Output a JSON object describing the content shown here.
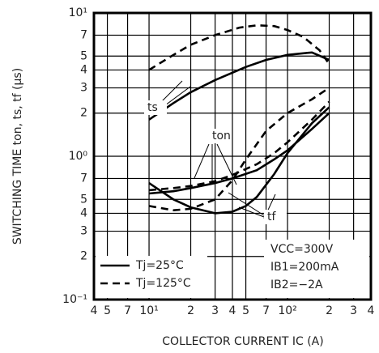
{
  "chart_data": {
    "type": "line",
    "x_label": "COLLECTOR CURRENT   IC (A)",
    "y_label": "SWITCHING TIME   ton, ts, tf (μs)",
    "xlog": true,
    "ylog": true,
    "grid": true,
    "xlim": [
      4,
      400
    ],
    "xticks": [
      4,
      5,
      7,
      {
        "value": 10,
        "label": "10¹"
      },
      {
        "value": 20,
        "label": "2"
      },
      {
        "value": 30,
        "label": "3"
      },
      {
        "value": 40,
        "label": "4"
      },
      {
        "value": 50,
        "label": "5"
      },
      {
        "value": 70,
        "label": "7"
      },
      {
        "value": 100,
        "label": "10²"
      },
      {
        "value": 200,
        "label": "2"
      },
      {
        "value": 300,
        "label": "3"
      },
      {
        "value": 400,
        "label": "4"
      }
    ],
    "ylim": [
      0.1,
      10
    ],
    "yticks": [
      {
        "value": 0.1,
        "label": "10⁻¹"
      },
      {
        "value": 0.2,
        "label": "2"
      },
      {
        "value": 0.3,
        "label": "3"
      },
      {
        "value": 0.4,
        "label": "4"
      },
      {
        "value": 0.5,
        "label": "5"
      },
      {
        "value": 0.7,
        "label": "7"
      },
      {
        "value": 1,
        "label": "10⁰"
      },
      2,
      3,
      4,
      5,
      7,
      {
        "value": 10,
        "label": "10¹"
      }
    ],
    "series": [
      {
        "name": "Tj=25°C",
        "dash": false,
        "color": "#000000",
        "curves": [
          {
            "x": [
              10,
              15,
              20,
              30,
              50,
              70,
              100,
              150,
              200
            ],
            "values": [
              1.8,
              2.35,
              2.8,
              3.4,
              4.2,
              4.7,
              5.1,
              5.3,
              4.7
            ]
          },
          {
            "x": [
              10,
              15,
              20,
              30,
              40,
              60,
              80,
              100,
              150,
              200
            ],
            "values": [
              0.55,
              0.57,
              0.6,
              0.65,
              0.7,
              0.8,
              0.95,
              1.1,
              1.55,
              2.0
            ]
          },
          {
            "x": [
              10,
              15,
              20,
              30,
              40,
              50,
              60,
              80,
              100,
              150,
              200
            ],
            "values": [
              0.65,
              0.5,
              0.44,
              0.4,
              0.41,
              0.45,
              0.52,
              0.75,
              1.05,
              1.7,
              2.2
            ]
          }
        ]
      },
      {
        "name": "Tj=125°C",
        "dash": true,
        "color": "#000000",
        "curves": [
          {
            "x": [
              10,
              15,
              20,
              30,
              45,
              60,
              80,
              100,
              130,
              170,
              200
            ],
            "values": [
              4.0,
              5.1,
              6.0,
              7.0,
              7.9,
              8.2,
              8.1,
              7.6,
              6.8,
              5.5,
              4.4
            ]
          },
          {
            "x": [
              10,
              15,
              20,
              30,
              40,
              60,
              80,
              100,
              150,
              200
            ],
            "values": [
              0.58,
              0.6,
              0.62,
              0.67,
              0.74,
              0.88,
              1.05,
              1.25,
              1.8,
              2.4
            ]
          },
          {
            "x": [
              10,
              15,
              20,
              30,
              40,
              50,
              70,
              100,
              150,
              200
            ],
            "values": [
              0.45,
              0.42,
              0.43,
              0.5,
              0.68,
              0.95,
              1.5,
              2.0,
              2.5,
              3.0
            ]
          }
        ]
      }
    ],
    "annotations": [
      "ts",
      "ton",
      "tf"
    ],
    "conditions": [
      "VCC=300V",
      "IB1=200mA",
      "IB2=−2A"
    ]
  }
}
